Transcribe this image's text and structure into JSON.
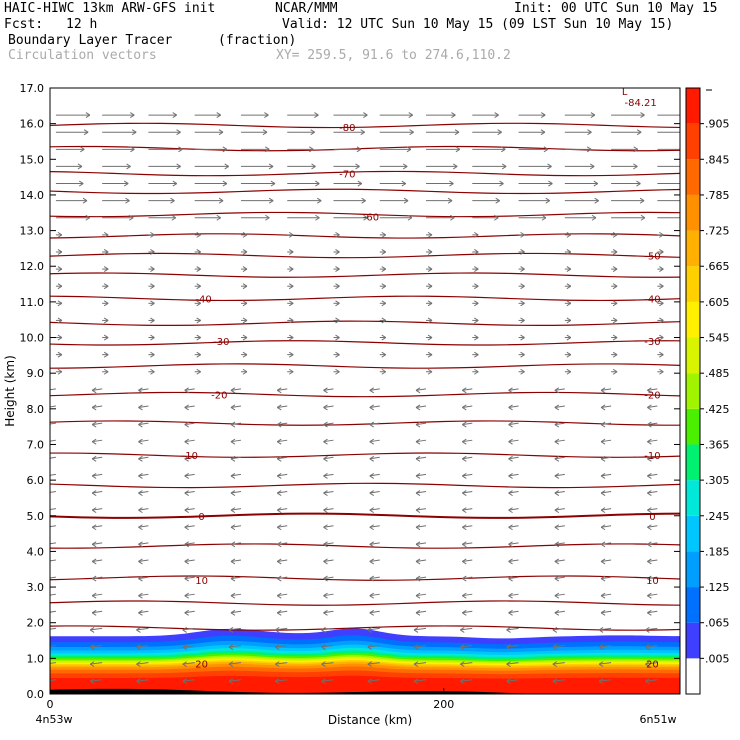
{
  "header": {
    "model": "HAIC-HIWC 13km ARW-GFS init",
    "org": "NCAR/MMM",
    "init": "Init: 00 UTC Sun 10 May 15",
    "fcst_label": "Fcst:",
    "fcst_value": "12 h",
    "valid": "Valid: 12 UTC Sun 10 May 15 (09 LST Sun 10 May 15)",
    "field": "Boundary Layer Tracer",
    "field_units": "(fraction)",
    "vectors": "Circulation vectors",
    "xy": "XY= 259.5, 91.6 to 274.6,110.2"
  },
  "chart_data": {
    "type": "cross-section",
    "ylabel": "Height (km)",
    "xlabel": "Distance (km)",
    "x_ticks": [
      "0",
      "200"
    ],
    "x_end_labels": [
      "4n53w",
      "6n51w"
    ],
    "xlim": [
      0,
      320
    ],
    "ylim": [
      0,
      17
    ],
    "y_ticks": [
      "0.0",
      "1.0",
      "2.0",
      "3.0",
      "4.0",
      "5.0",
      "6.0",
      "7.0",
      "8.0",
      "9.0",
      "10.0",
      "11.0",
      "12.0",
      "13.0",
      "14.0",
      "15.0",
      "16.0",
      "17.0"
    ],
    "colorbar": {
      "labels": [
        ".005",
        ".065",
        ".125",
        ".185",
        ".245",
        ".305",
        ".365",
        ".425",
        ".485",
        ".545",
        ".605",
        ".665",
        ".725",
        ".785",
        ".845",
        ".905"
      ],
      "colors": [
        "#ffffff",
        "#3f3fff",
        "#0070ff",
        "#009fff",
        "#00c6ff",
        "#00e8d8",
        "#00f070",
        "#4af000",
        "#a0f400",
        "#d8f400",
        "#fff000",
        "#ffd000",
        "#ffb000",
        "#ff9000",
        "#ff6a00",
        "#ff4000",
        "#ff1a00"
      ]
    },
    "contour_labels": [
      {
        "text": "-80",
        "km": 15.9,
        "x_km": 151
      },
      {
        "text": "-70",
        "km": 14.6,
        "x_km": 151
      },
      {
        "text": "-60",
        "km": 13.4,
        "x_km": 163
      },
      {
        "text": "-50",
        "km": 12.3,
        "x_km": 306
      },
      {
        "text": "-40",
        "km": 11.1,
        "x_km": 78
      },
      {
        "text": "-40",
        "km": 11.1,
        "x_km": 306
      },
      {
        "text": "-30",
        "km": 9.9,
        "x_km": 87
      },
      {
        "text": "-30",
        "km": 9.9,
        "x_km": 306
      },
      {
        "text": "-20",
        "km": 8.4,
        "x_km": 86
      },
      {
        "text": "-20",
        "km": 8.4,
        "x_km": 306
      },
      {
        "text": "-10",
        "km": 6.7,
        "x_km": 71
      },
      {
        "text": "-10",
        "km": 6.7,
        "x_km": 306
      },
      {
        "text": "0",
        "km": 5.0,
        "x_km": 77
      },
      {
        "text": "0",
        "km": 5.0,
        "x_km": 306
      },
      {
        "text": "10",
        "km": 3.2,
        "x_km": 77
      },
      {
        "text": "10",
        "km": 3.2,
        "x_km": 306
      },
      {
        "text": "20",
        "km": 0.85,
        "x_km": 77
      },
      {
        "text": "20",
        "km": 0.85,
        "x_km": 306
      }
    ],
    "low_label": {
      "marker": "L",
      "value": "-84.21"
    },
    "isotherm_heights_km": [
      15.95,
      15.3,
      14.6,
      14.1,
      13.45,
      12.85,
      12.3,
      11.75,
      11.1,
      10.4,
      9.85,
      9.2,
      8.4,
      7.6,
      6.7,
      5.85,
      5.0,
      4.15,
      3.25,
      2.55,
      1.85
    ]
  }
}
